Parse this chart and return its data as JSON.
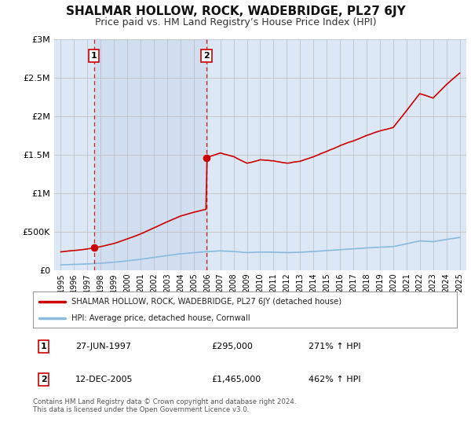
{
  "title": "SHALMAR HOLLOW, ROCK, WADEBRIDGE, PL27 6JY",
  "subtitle": "Price paid vs. HM Land Registry’s House Price Index (HPI)",
  "title_fontsize": 11,
  "subtitle_fontsize": 9,
  "bg_color": "#ffffff",
  "plot_bg_color": "#dce8f5",
  "shade_color": "#ccddf0",
  "grid_color": "#bbbbbb",
  "red_line_color": "#cc0000",
  "blue_line_color": "#88bbdd",
  "transaction1": {
    "date_x": 1997.49,
    "price": 295000,
    "label": "1"
  },
  "transaction2": {
    "date_x": 2005.95,
    "price": 1465000,
    "label": "2"
  },
  "legend_label_red": "SHALMAR HOLLOW, ROCK, WADEBRIDGE, PL27 6JY (detached house)",
  "legend_label_blue": "HPI: Average price, detached house, Cornwall",
  "table_rows": [
    {
      "num": "1",
      "date": "27-JUN-1997",
      "price": "£295,000",
      "hpi": "271% ↑ HPI"
    },
    {
      "num": "2",
      "date": "12-DEC-2005",
      "price": "£1,465,000",
      "hpi": "462% ↑ HPI"
    }
  ],
  "footnote": "Contains HM Land Registry data © Crown copyright and database right 2024.\nThis data is licensed under the Open Government Licence v3.0.",
  "ylim": [
    0,
    3000000
  ],
  "xlim": [
    1994.5,
    2025.5
  ],
  "yticks": [
    0,
    500000,
    1000000,
    1500000,
    2000000,
    2500000,
    3000000
  ],
  "ytick_labels": [
    "£0",
    "£500K",
    "£1M",
    "£1.5M",
    "£2M",
    "£2.5M",
    "£3M"
  ],
  "xticks": [
    1995,
    1996,
    1997,
    1998,
    1999,
    2000,
    2001,
    2002,
    2003,
    2004,
    2005,
    2006,
    2007,
    2008,
    2009,
    2010,
    2011,
    2012,
    2013,
    2014,
    2015,
    2016,
    2017,
    2018,
    2019,
    2020,
    2021,
    2022,
    2023,
    2024,
    2025
  ]
}
